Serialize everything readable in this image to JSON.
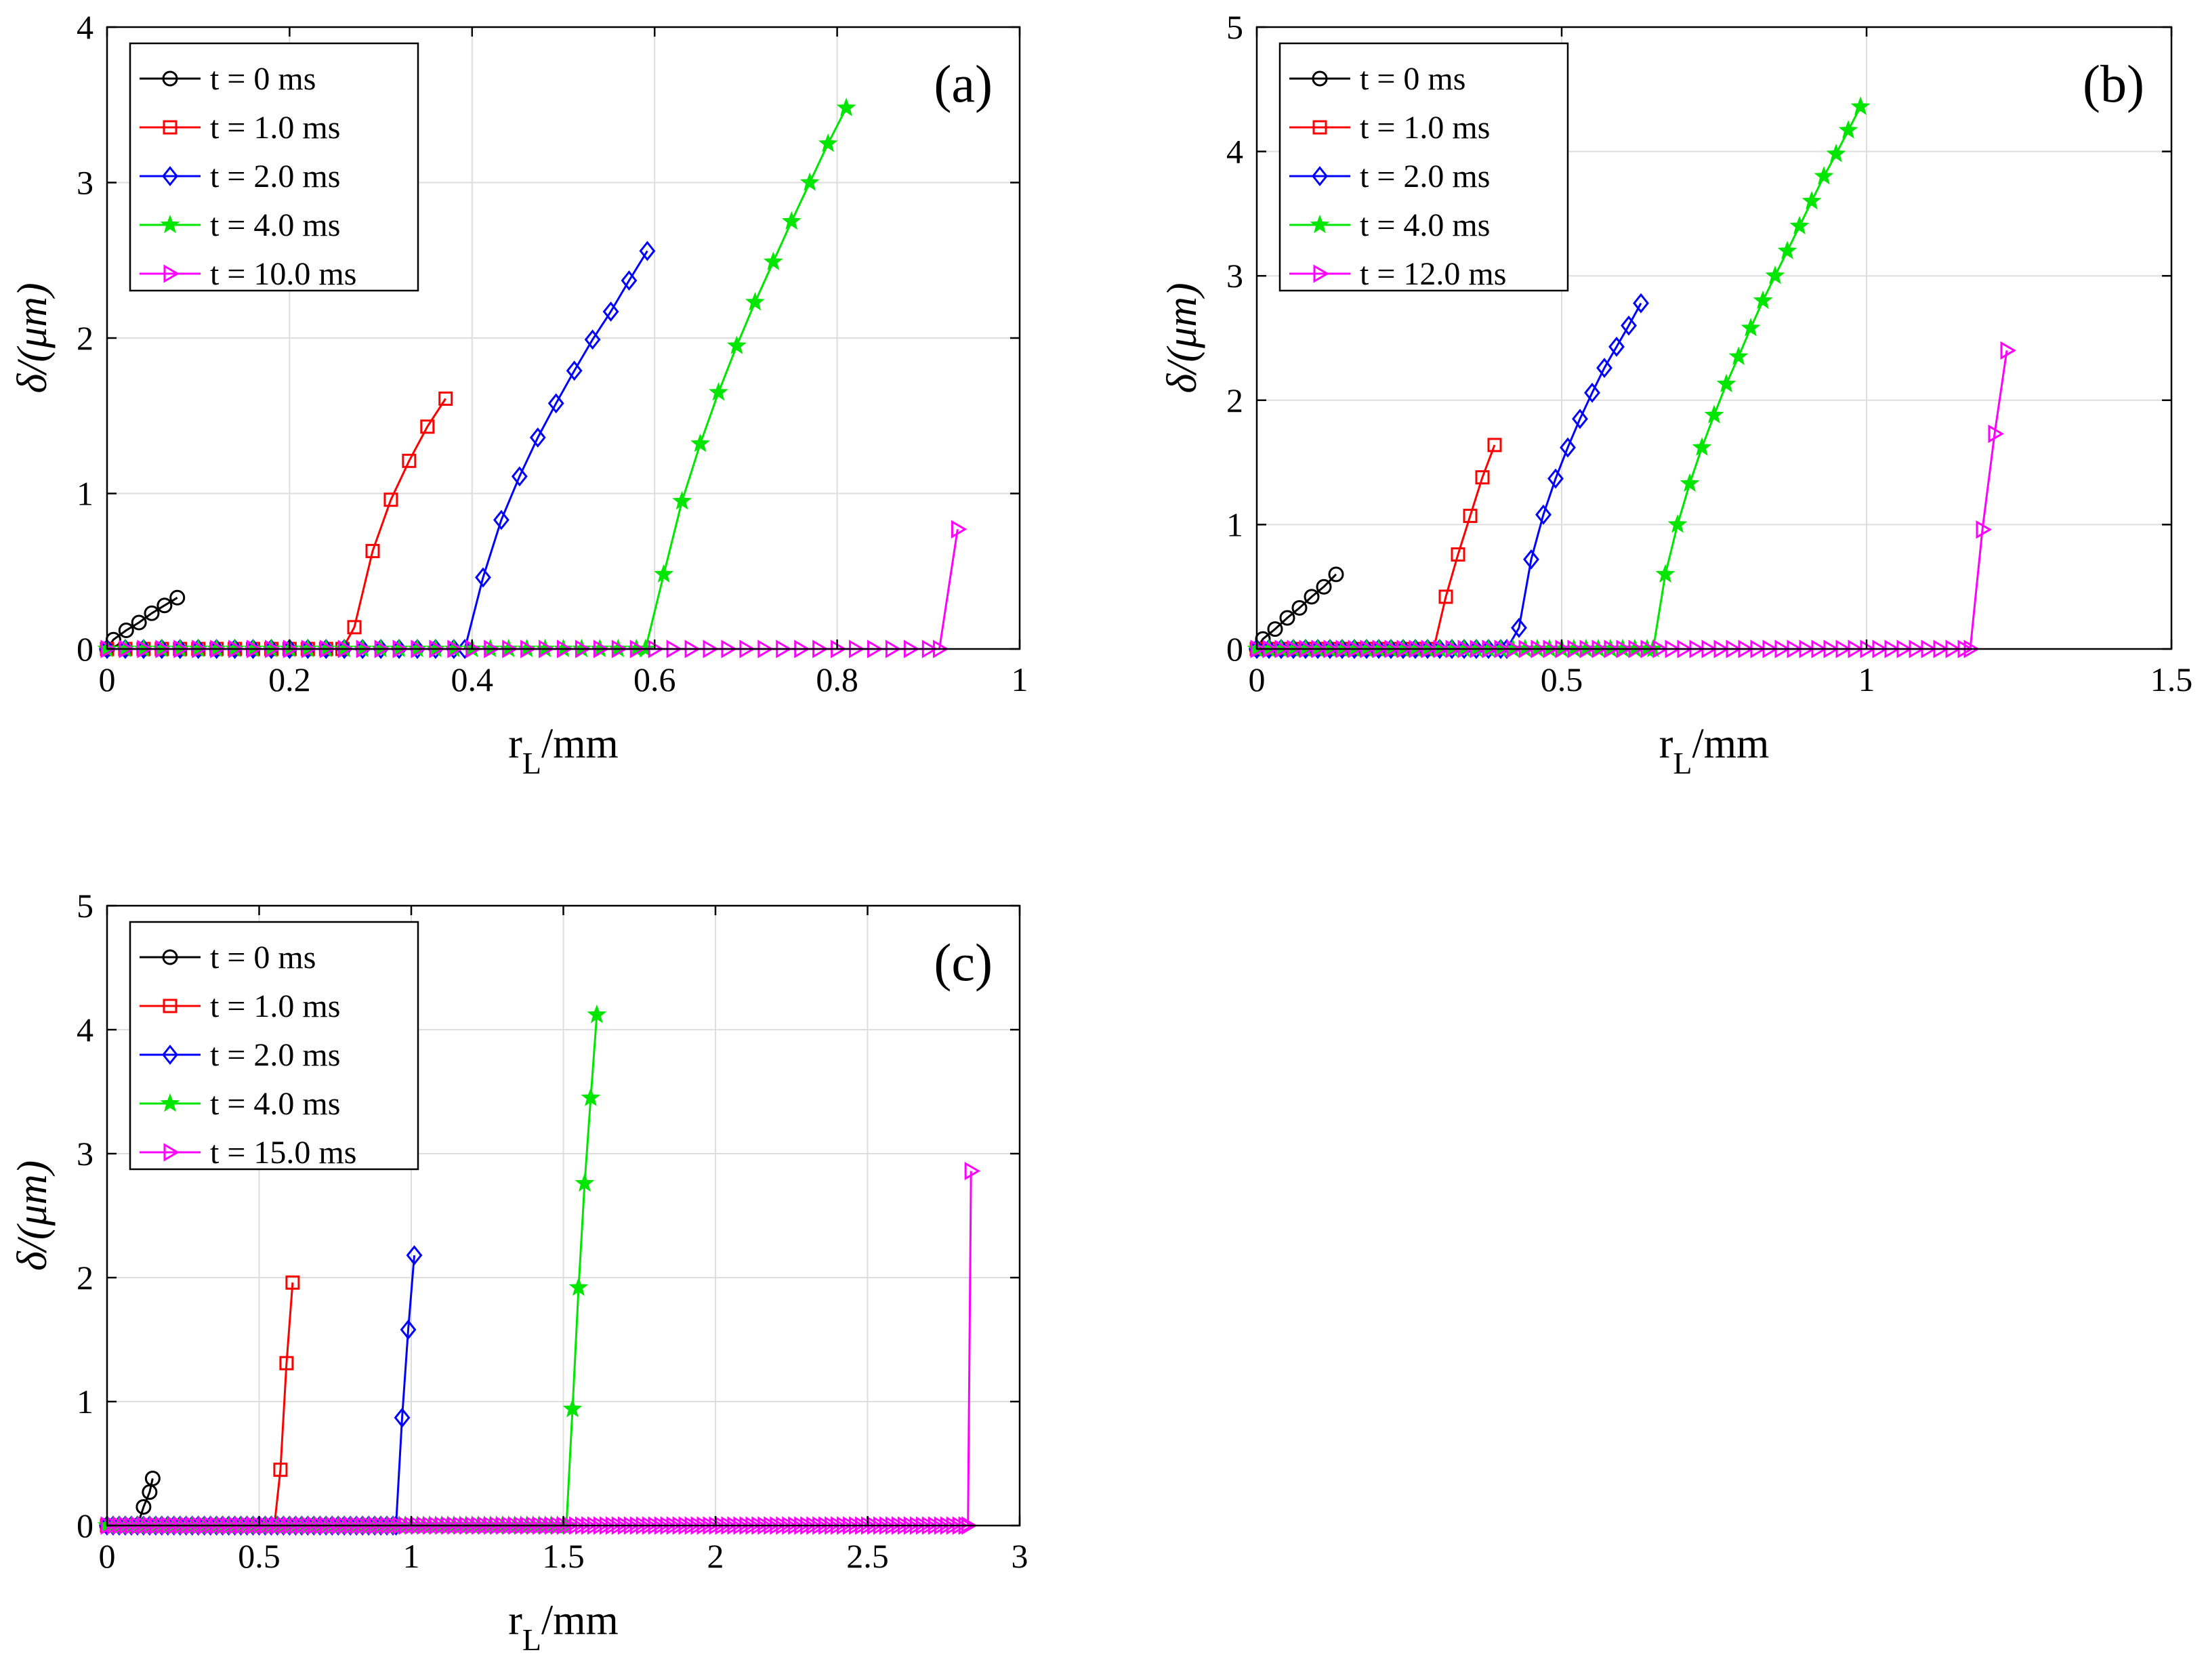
{
  "figure": {
    "panels": [
      "(a)",
      "(b)",
      "(c)"
    ]
  },
  "chart_data": [
    {
      "type": "line",
      "panel_label": "(a)",
      "xlabel_main": "r",
      "xlabel_sub": "L",
      "xlabel_unit": "/mm",
      "ylabel": "δ/(μm)",
      "xlim": [
        0,
        1
      ],
      "ylim": [
        0,
        4
      ],
      "xticks": [
        0,
        0.2,
        0.4,
        0.6,
        0.8,
        1
      ],
      "xtick_labels": [
        "0",
        "0.2",
        "0.4",
        "0.6",
        "0.8",
        "1"
      ],
      "yticks": [
        0,
        1,
        2,
        3,
        4
      ],
      "ytick_labels": [
        "0",
        "1",
        "2",
        "3",
        "4"
      ],
      "grid": true,
      "legend_position": "top-left",
      "series": [
        {
          "name": "t = 0 ms",
          "color": "#000000",
          "marker": "circle",
          "x": [
            0.0,
            0.007,
            0.021,
            0.035,
            0.049,
            0.063,
            0.077
          ],
          "y": [
            0.0,
            0.06,
            0.12,
            0.17,
            0.23,
            0.28,
            0.33
          ]
        },
        {
          "name": "t = 1.0 ms",
          "color": "#ff0000",
          "marker": "square",
          "baseline_marker_step": 0.02,
          "x": [
            0.0,
            0.258,
            0.271,
            0.291,
            0.311,
            0.331,
            0.351,
            0.371
          ],
          "y": [
            0.0,
            0.0,
            0.14,
            0.63,
            0.96,
            1.21,
            1.43,
            1.61
          ]
        },
        {
          "name": "t = 2.0 ms",
          "color": "#0000ff",
          "marker": "diamond",
          "baseline_marker_step": 0.02,
          "x": [
            0.0,
            0.392,
            0.412,
            0.432,
            0.452,
            0.472,
            0.492,
            0.512,
            0.532,
            0.552,
            0.572,
            0.592
          ],
          "y": [
            0.0,
            0.0,
            0.46,
            0.83,
            1.11,
            1.36,
            1.58,
            1.79,
            1.99,
            2.17,
            2.37,
            2.56
          ]
        },
        {
          "name": "t = 4.0 ms",
          "color": "#00e600",
          "marker": "star",
          "baseline_marker_step": 0.02,
          "x": [
            0.0,
            0.59,
            0.61,
            0.63,
            0.65,
            0.67,
            0.69,
            0.71,
            0.73,
            0.75,
            0.77,
            0.79,
            0.81
          ],
          "y": [
            0.0,
            0.0,
            0.48,
            0.95,
            1.32,
            1.65,
            1.95,
            2.23,
            2.49,
            2.75,
            3.0,
            3.25,
            3.48
          ]
        },
        {
          "name": "t = 10.0 ms",
          "color": "#ff00ff",
          "marker": "triangle-right",
          "baseline_marker_step": 0.02,
          "x": [
            0.0,
            0.912,
            0.932
          ],
          "y": [
            0.0,
            0.0,
            0.77
          ]
        }
      ]
    },
    {
      "type": "line",
      "panel_label": "(b)",
      "xlabel_main": "r",
      "xlabel_sub": "L",
      "xlabel_unit": "/mm",
      "ylabel": "δ/(μm)",
      "xlim": [
        0,
        1.5
      ],
      "ylim": [
        0,
        5
      ],
      "xticks": [
        0,
        0.5,
        1,
        1.5
      ],
      "xtick_labels": [
        "0",
        "0.5",
        "1",
        "1.5"
      ],
      "yticks": [
        0,
        1,
        2,
        3,
        4,
        5
      ],
      "ytick_labels": [
        "0",
        "1",
        "2",
        "3",
        "4",
        "5"
      ],
      "grid": true,
      "legend_position": "top-left",
      "series": [
        {
          "name": "t = 0 ms",
          "color": "#000000",
          "marker": "circle",
          "x": [
            0.0,
            0.01,
            0.03,
            0.05,
            0.07,
            0.09,
            0.11,
            0.13
          ],
          "y": [
            0.0,
            0.08,
            0.16,
            0.25,
            0.33,
            0.42,
            0.5,
            0.6
          ]
        },
        {
          "name": "t = 1.0 ms",
          "color": "#ff0000",
          "marker": "square",
          "baseline_marker_step": 0.02,
          "x": [
            0.0,
            0.29,
            0.31,
            0.33,
            0.35,
            0.37,
            0.39
          ],
          "y": [
            0.0,
            0.0,
            0.42,
            0.76,
            1.07,
            1.38,
            1.64
          ]
        },
        {
          "name": "t = 2.0 ms",
          "color": "#0000ff",
          "marker": "diamond",
          "baseline_marker_step": 0.02,
          "x": [
            0.0,
            0.41,
            0.43,
            0.45,
            0.47,
            0.49,
            0.51,
            0.53,
            0.55,
            0.57,
            0.59,
            0.61,
            0.63
          ],
          "y": [
            0.0,
            0.0,
            0.17,
            0.72,
            1.08,
            1.37,
            1.62,
            1.85,
            2.06,
            2.26,
            2.43,
            2.6,
            2.78
          ]
        },
        {
          "name": "t = 4.0 ms",
          "color": "#00e600",
          "marker": "star",
          "baseline_marker_step": 0.02,
          "x": [
            0.0,
            0.65,
            0.67,
            0.69,
            0.71,
            0.73,
            0.75,
            0.77,
            0.79,
            0.81,
            0.83,
            0.85,
            0.87,
            0.89,
            0.91,
            0.93,
            0.95,
            0.97,
            0.99
          ],
          "y": [
            0.0,
            0.0,
            0.6,
            1.0,
            1.33,
            1.62,
            1.88,
            2.13,
            2.35,
            2.58,
            2.8,
            3.0,
            3.2,
            3.4,
            3.6,
            3.8,
            3.98,
            4.17,
            4.36
          ]
        },
        {
          "name": "t = 12.0 ms",
          "color": "#ff00ff",
          "marker": "triangle-right",
          "baseline_marker_step": 0.02,
          "x": [
            0.0,
            1.17,
            1.19,
            1.21,
            1.23
          ],
          "y": [
            0.0,
            0.0,
            0.96,
            1.73,
            2.4
          ]
        }
      ]
    },
    {
      "type": "line",
      "panel_label": "(c)",
      "xlabel_main": "r",
      "xlabel_sub": "L",
      "xlabel_unit": "/mm",
      "ylabel": "δ/(μm)",
      "xlim": [
        0,
        3
      ],
      "ylim": [
        0,
        5
      ],
      "xticks": [
        0,
        0.5,
        1,
        1.5,
        2,
        2.5,
        3
      ],
      "xtick_labels": [
        "0",
        "0.5",
        "1",
        "1.5",
        "2",
        "2.5",
        "3"
      ],
      "yticks": [
        0,
        1,
        2,
        3,
        4,
        5
      ],
      "ytick_labels": [
        "0",
        "1",
        "2",
        "3",
        "4",
        "5"
      ],
      "grid": true,
      "legend_position": "top-left",
      "series": [
        {
          "name": "t = 0 ms",
          "color": "#000000",
          "marker": "circle",
          "x": [
            0.0,
            0.1,
            0.12,
            0.14,
            0.15
          ],
          "y": [
            0.0,
            0.0,
            0.15,
            0.27,
            0.38
          ]
        },
        {
          "name": "t = 1.0 ms",
          "color": "#ff0000",
          "marker": "square",
          "baseline_marker_step": 0.02,
          "x": [
            0.0,
            0.55,
            0.57,
            0.59,
            0.61
          ],
          "y": [
            0.0,
            0.0,
            0.45,
            1.31,
            1.96
          ]
        },
        {
          "name": "t = 2.0 ms",
          "color": "#0000ff",
          "marker": "diamond",
          "baseline_marker_step": 0.02,
          "x": [
            0.0,
            0.95,
            0.97,
            0.99,
            1.01
          ],
          "y": [
            0.0,
            0.0,
            0.87,
            1.58,
            2.18
          ]
        },
        {
          "name": "t = 4.0 ms",
          "color": "#00e600",
          "marker": "star",
          "baseline_marker_step": 0.02,
          "x": [
            0.0,
            1.51,
            1.53,
            1.55,
            1.57,
            1.59,
            1.61
          ],
          "y": [
            0.0,
            0.0,
            0.94,
            1.92,
            2.76,
            3.45,
            4.12
          ]
        },
        {
          "name": "t = 15.0 ms",
          "color": "#ff00ff",
          "marker": "triangle-right",
          "baseline_marker_step": 0.02,
          "x": [
            0.0,
            2.83,
            2.84
          ],
          "y": [
            0.0,
            0.0,
            2.86
          ]
        }
      ]
    }
  ]
}
